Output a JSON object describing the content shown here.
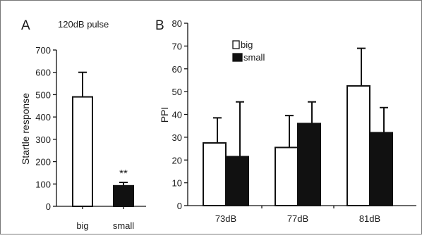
{
  "chart_data": [
    {
      "panel_letter": "A",
      "type": "bar",
      "title": "120dB pulse",
      "ylabel": "Startle response",
      "ylim": [
        0,
        700
      ],
      "yticks": [
        0,
        100,
        200,
        300,
        400,
        500,
        600,
        700
      ],
      "categories": [
        "big",
        "small"
      ],
      "values": [
        490,
        92
      ],
      "errors": [
        110,
        15
      ],
      "fills": [
        "#ffffff",
        "#111111"
      ],
      "annotations": [
        {
          "category": "small",
          "text": "**"
        }
      ]
    },
    {
      "panel_letter": "B",
      "type": "bar",
      "ylabel": "PPI",
      "ylim": [
        0,
        80
      ],
      "yticks": [
        0,
        10,
        20,
        30,
        40,
        50,
        60,
        70,
        80
      ],
      "categories": [
        "73dB",
        "77dB",
        "81dB"
      ],
      "series": [
        {
          "name": "big",
          "color": "#ffffff",
          "values": [
            27.5,
            25.5,
            52.5
          ],
          "errors": [
            11,
            14,
            16.5
          ]
        },
        {
          "name": "small",
          "color": "#111111",
          "values": [
            21.5,
            36,
            32
          ],
          "errors": [
            24,
            9.5,
            11
          ]
        }
      ],
      "legend_position": "top-left"
    }
  ]
}
